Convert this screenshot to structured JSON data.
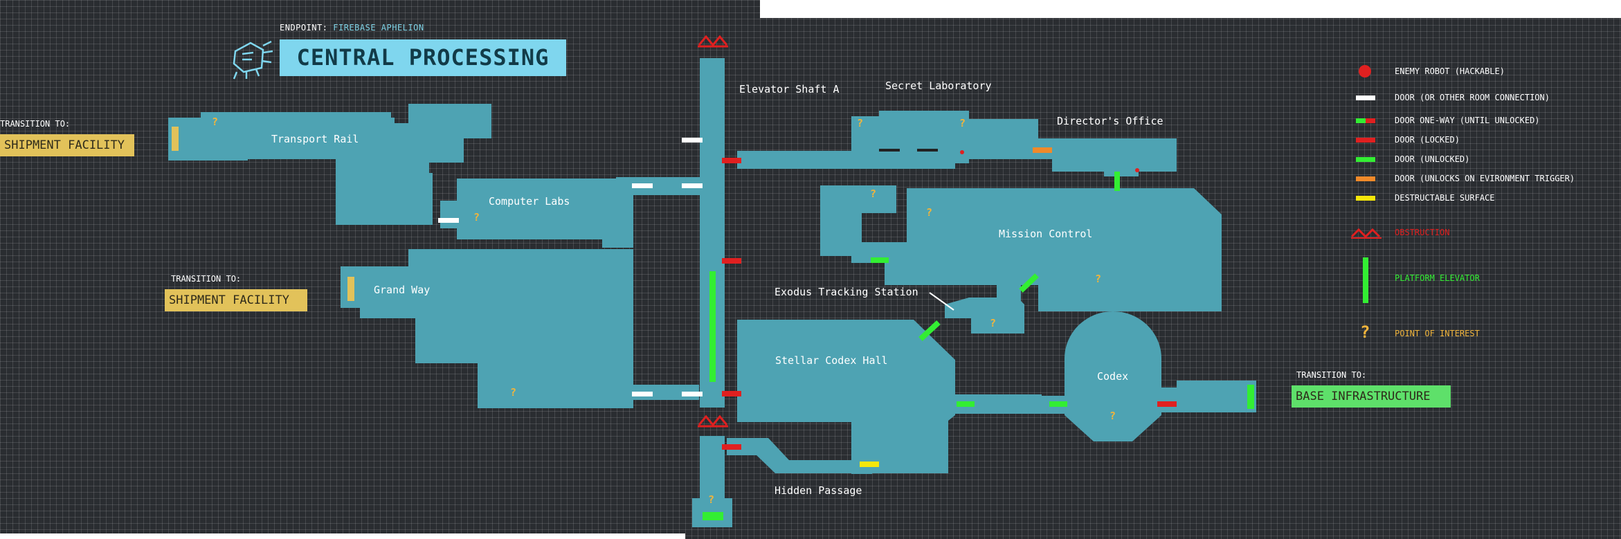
{
  "header": {
    "endpoint_label": "ENDPOINT:",
    "endpoint_value": "FIREBASE APHELION",
    "title": "CENTRAL PROCESSING"
  },
  "transitions": [
    {
      "label": "TRANSITION TO:",
      "target": "SHIPMENT FACILITY",
      "color": "#e2c25a"
    },
    {
      "label": "TRANSITION TO:",
      "target": "SHIPMENT FACILITY",
      "color": "#e2c25a"
    },
    {
      "label": "TRANSITION TO:",
      "target": "BASE INFRASTRUCTURE",
      "color": "#5ee06a"
    }
  ],
  "rooms": {
    "transport_rail": "Transport Rail",
    "computer_labs": "Computer Labs",
    "grand_way": "Grand Way",
    "elevator_shaft_a": "Elevator Shaft A",
    "secret_laboratory": "Secret Laboratory",
    "directors_office": "Director's Office",
    "mission_control": "Mission Control",
    "exodus_tracking_station": "Exodus Tracking Station",
    "stellar_codex_hall": "Stellar Codex Hall",
    "codex": "Codex",
    "hidden_passage": "Hidden Passage"
  },
  "poi_marker": "?",
  "legend": [
    {
      "icon": "enemy-robot-icon",
      "text": "ENEMY ROBOT (HACKABLE)",
      "color": "#e02020"
    },
    {
      "icon": "door-icon",
      "text": "DOOR (OR OTHER ROOM CONNECTION)",
      "color": "#ffffff"
    },
    {
      "icon": "one-way-door-icon",
      "text": "DOOR ONE-WAY (UNTIL UNLOCKED)",
      "color": "#33ee33"
    },
    {
      "icon": "locked-door-icon",
      "text": "DOOR (LOCKED)",
      "color": "#e02020"
    },
    {
      "icon": "unlocked-door-icon",
      "text": "DOOR (UNLOCKED)",
      "color": "#33ee33"
    },
    {
      "icon": "trigger-door-icon",
      "text": "DOOR (UNLOCKS ON EVIRONMENT TRIGGER)",
      "color": "#f08a2a"
    },
    {
      "icon": "destructable-surface-icon",
      "text": "DESTRUCTABLE SURFACE",
      "color": "#f5e60a"
    },
    {
      "icon": "obstruction-icon",
      "text": "OBSTRUCTION",
      "color": "#e02020"
    },
    {
      "icon": "platform-elevator-icon",
      "text": "PLATFORM ELEVATOR",
      "color": "#33ee33"
    },
    {
      "icon": "point-of-interest-icon",
      "text": "POINT OF INTEREST",
      "color": "#f0b43c"
    }
  ],
  "colors": {
    "room": "#4ea3b3",
    "background": "#2a2d31",
    "title_box": "#7fd6ee"
  }
}
